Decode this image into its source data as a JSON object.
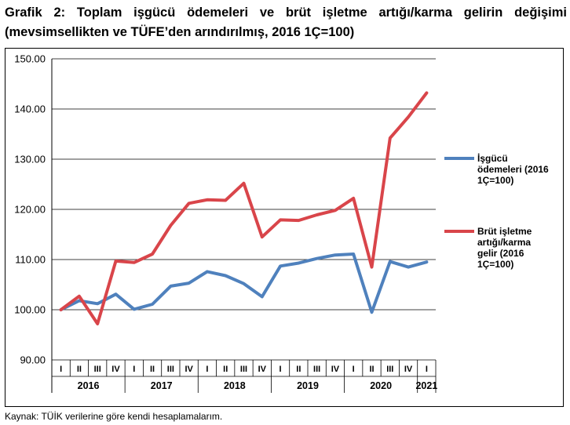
{
  "title": "Grafik 2: Toplam işgücü ödemeleri ve brüt işletme artığı/karma gelirin değişimi (mevsimsellikten ve TÜFE’den arındırılmış, 2016 1Ç=100)",
  "source": "Kaynak: TÜİK verilerine göre kendi hesaplamalarım.",
  "chart_data": {
    "type": "line",
    "title": "Grafik 2: Toplam işgücü ödemeleri ve brüt işletme artığı/karma gelirin değişimi (mevsimsellikten ve TÜFE’den arındırılmış, 2016 1Ç=100)",
    "xlabel": "",
    "ylabel": "",
    "ylim": [
      90,
      150
    ],
    "yticks": [
      "90.00",
      "100.00",
      "110.00",
      "120.00",
      "130.00",
      "140.00",
      "150.00"
    ],
    "grid": true,
    "legend_position": "right",
    "categories": [
      "I",
      "II",
      "III",
      "IV",
      "I",
      "II",
      "III",
      "IV",
      "I",
      "II",
      "III",
      "IV",
      "I",
      "II",
      "III",
      "IV",
      "I",
      "II",
      "III",
      "IV",
      "I"
    ],
    "years": [
      {
        "label": "2016",
        "span": 4
      },
      {
        "label": "2017",
        "span": 4
      },
      {
        "label": "2018",
        "span": 4
      },
      {
        "label": "2019",
        "span": 4
      },
      {
        "label": "2020",
        "span": 4
      },
      {
        "label": "2021",
        "span": 1
      }
    ],
    "series": [
      {
        "name": "İşgücü ödemeleri (2016 1Ç=100)",
        "legend_lines": [
          "İşgücü",
          "ödemeleri (2016",
          "1Ç=100)"
        ],
        "color": "#4F81BD",
        "values": [
          100.0,
          101.8,
          101.2,
          103.1,
          100.1,
          101.1,
          104.7,
          105.3,
          107.6,
          106.8,
          105.2,
          102.6,
          108.7,
          109.3,
          110.2,
          110.9,
          111.1,
          99.5,
          109.6,
          108.5,
          109.5
        ]
      },
      {
        "name": "Brüt işletme artığı/karma gelir (2016 1Ç=100)",
        "legend_lines": [
          "Brüt işletme",
          "artığı/karma",
          "gelir (2016",
          "1Ç=100)"
        ],
        "color": "#D9454A",
        "values": [
          100.0,
          102.7,
          97.2,
          109.7,
          109.4,
          111.1,
          116.8,
          121.2,
          121.9,
          121.8,
          125.2,
          114.5,
          117.9,
          117.8,
          118.9,
          119.8,
          122.2,
          108.5,
          134.2,
          138.4,
          143.2
        ]
      }
    ]
  }
}
